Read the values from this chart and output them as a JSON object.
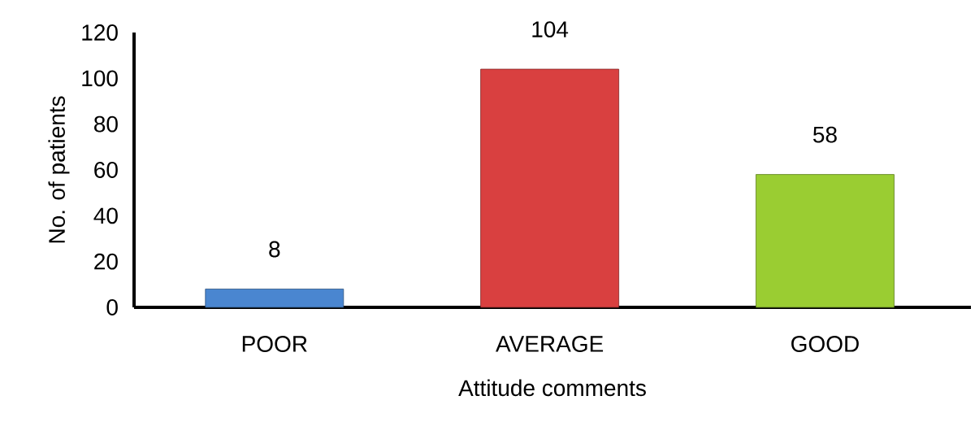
{
  "chart_data": {
    "type": "bar",
    "xlabel": "Attitude comments",
    "ylabel": "No. of patients",
    "categories": [
      "POOR",
      "AVERAGE",
      "GOOD"
    ],
    "values": [
      8,
      104,
      58
    ],
    "colors": [
      "#4a86d0",
      "#d94040",
      "#9acd32"
    ],
    "ylim": [
      0,
      120
    ],
    "yticks": [
      0,
      20,
      40,
      60,
      80,
      100,
      120
    ],
    "data_labels": true,
    "grid": false
  }
}
